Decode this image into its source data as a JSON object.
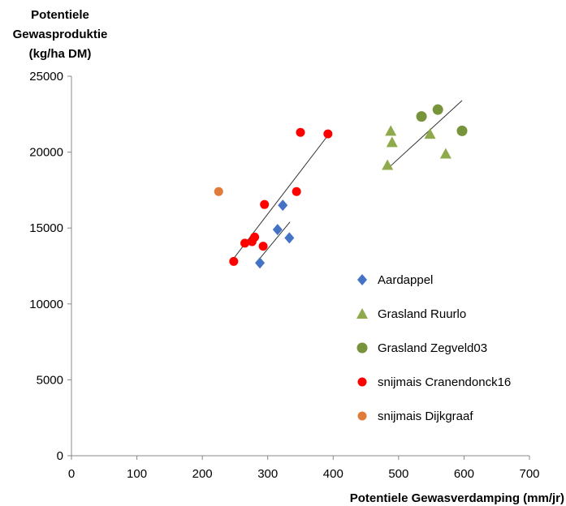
{
  "chart_data": {
    "type": "scatter",
    "ylabel_lines": [
      "Potentiele",
      "Gewasproduktie",
      "(kg/ha DM)"
    ],
    "xlabel": "Potentiele Gewasverdamping (mm/jr)",
    "xlim": [
      0,
      700
    ],
    "ylim": [
      0,
      25000
    ],
    "x_ticks": [
      0,
      100,
      200,
      300,
      400,
      500,
      600,
      700
    ],
    "y_ticks": [
      0,
      5000,
      10000,
      15000,
      20000,
      25000
    ],
    "grid": false,
    "legend_position": "right",
    "series": [
      {
        "name": "Aardappel",
        "marker": "diamond",
        "color": "#4472c4",
        "points": [
          [
            288,
            12700
          ],
          [
            315,
            14900
          ],
          [
            323,
            16500
          ],
          [
            333,
            14350
          ]
        ]
      },
      {
        "name": "Grasland Ruurlo",
        "marker": "triangle",
        "color": "#8faa4a",
        "points": [
          [
            483,
            19150
          ],
          [
            488,
            21400
          ],
          [
            490,
            20650
          ],
          [
            548,
            21200
          ],
          [
            572,
            19900
          ]
        ]
      },
      {
        "name": "Grasland Zegveld03",
        "marker": "circle",
        "color": "#77933c",
        "points": [
          [
            535,
            22350
          ],
          [
            560,
            22800
          ],
          [
            597,
            21400
          ]
        ]
      },
      {
        "name": "snijmais Cranendonck16",
        "marker": "circle",
        "color": "#ff0000",
        "points": [
          [
            248,
            12800
          ],
          [
            265,
            14000
          ],
          [
            276,
            14100
          ],
          [
            280,
            14400
          ],
          [
            293,
            13800
          ],
          [
            295,
            16550
          ],
          [
            344,
            17400
          ],
          [
            350,
            21300
          ],
          [
            392,
            21200
          ]
        ]
      },
      {
        "name": "snijmais Dijkgraaf",
        "marker": "circle",
        "color": "#e07b39",
        "points": [
          [
            225,
            17400
          ]
        ]
      }
    ],
    "trendlines": [
      {
        "series": "Aardappel",
        "from": [
          288,
          13000
        ],
        "to": [
          334,
          15400
        ]
      },
      {
        "series": "Grasland",
        "from": [
          483,
          18900
        ],
        "to": [
          597,
          23400
        ]
      },
      {
        "series": "snijmais Cranendonck16",
        "from": [
          248,
          13000
        ],
        "to": [
          392,
          21100
        ]
      }
    ]
  }
}
